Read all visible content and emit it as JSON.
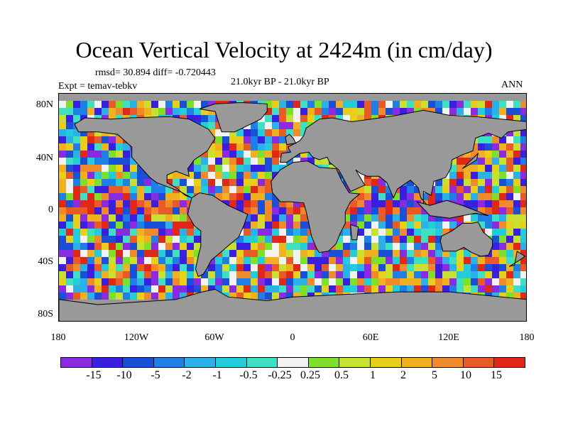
{
  "chart_data": {
    "type": "heatmap",
    "title": "Ocean Vertical Velocity at 2424m (in cm/day)",
    "stats": "rmsd= 30.894  diff= -0.720443",
    "period": "21.0kyr BP - 21.0kyr BP",
    "experiment": "Expt = temav-tebkv",
    "season": "ANN",
    "x_ticks": [
      "180",
      "120W",
      "60W",
      "0",
      "60E",
      "120E",
      "180"
    ],
    "x_range": [
      -180,
      180
    ],
    "y_ticks": [
      "80N",
      "40N",
      "0",
      "40S",
      "80S"
    ],
    "y_range": [
      -90,
      90
    ],
    "y_tick_values": [
      80,
      40,
      0,
      -40,
      -80
    ],
    "colorbar": {
      "levels": [
        "-15",
        "-10",
        "-5",
        "-2",
        "-1",
        "-0.5",
        "-0.25",
        "0.25",
        "0.5",
        "1",
        "2",
        "5",
        "10",
        "15"
      ],
      "colors": [
        "#8a2be2",
        "#3b1fe0",
        "#1a4fd8",
        "#1e7fe6",
        "#2bb0e8",
        "#22ccd8",
        "#3fe0c2",
        "#f2f2f2",
        "#7fe02a",
        "#c8e030",
        "#e8d018",
        "#f0b020",
        "#f08a2a",
        "#e85a28",
        "#e02818"
      ]
    },
    "land_color": "#999999"
  }
}
